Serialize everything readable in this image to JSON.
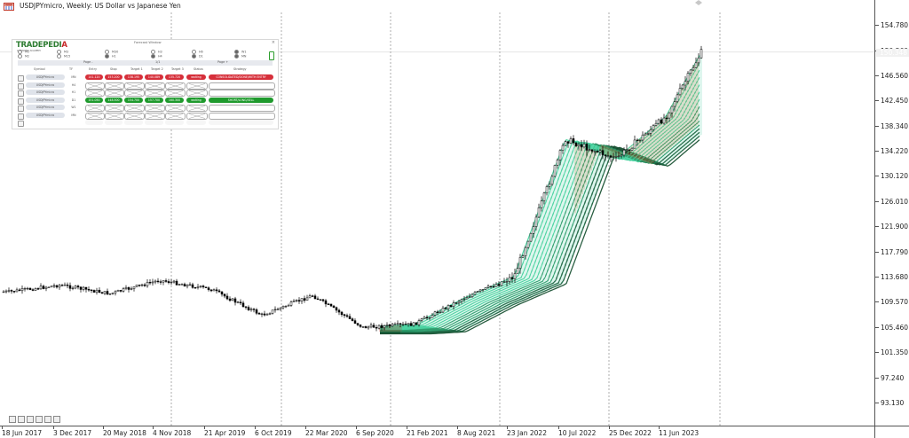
{
  "window": {
    "title": "USDJPYmicro, Weekly:  US Dollar vs Japanese Yen"
  },
  "panel": {
    "logo": "TRADEPEDIA",
    "logo_sub": "A TRADING ACADEMY",
    "title": "Forecast Window",
    "close": "×",
    "timeframes": [
      {
        "label": "M1",
        "on": false
      },
      {
        "label": "M2",
        "on": false
      },
      {
        "label": "M3",
        "on": false
      },
      {
        "label": "M15",
        "on": false
      },
      {
        "label": "M30",
        "on": false
      },
      {
        "label": "H1",
        "on": true
      },
      {
        "label": "H3",
        "on": false
      },
      {
        "label": "H4",
        "on": true
      },
      {
        "label": "H6",
        "on": false
      },
      {
        "label": "D1",
        "on": true
      },
      {
        "label": "W1",
        "on": true
      },
      {
        "label": "MN",
        "on": true
      }
    ],
    "pager": {
      "prev": "Page -",
      "num": "1/1",
      "next": "Page +"
    },
    "columns": [
      "Symbol",
      "TF",
      "Entry",
      "Stop",
      "Target 1",
      "Target 2",
      "Target 3",
      "Status",
      "Strategy"
    ],
    "rows": [
      {
        "symbol": "USDJPYmicro",
        "tf": "MN",
        "kind": "red",
        "entry": "141.120",
        "stop": "153.200",
        "t1": "138.195",
        "t2": "140.089",
        "t3": "135.720",
        "status": "waiting",
        "strategy": "CONSOLIDATED/DONE/WITH ENTRY"
      },
      {
        "symbol": "USDJPYmicro",
        "tf": "H4",
        "kind": "empty",
        "entry": "",
        "stop": "",
        "t1": "",
        "t2": "",
        "t3": "",
        "status": "",
        "strategy": ""
      },
      {
        "symbol": "USDJPYmicro",
        "tf": "H1",
        "kind": "empty",
        "entry": "",
        "stop": "",
        "t1": "",
        "t2": "",
        "t3": "",
        "status": "",
        "strategy": ""
      },
      {
        "symbol": "USDJPYmicro",
        "tf": "D1",
        "kind": "green",
        "entry": "151.050",
        "stop": "148.500",
        "t1": "154.700",
        "t2": "157.700",
        "t3": "160.300",
        "status": "waiting",
        "strategy": "SHORT/LONG/SELL"
      },
      {
        "symbol": "USDJPYmicro",
        "tf": "W1",
        "kind": "empty",
        "entry": "",
        "stop": "",
        "t1": "",
        "t2": "",
        "t3": "",
        "status": "",
        "strategy": ""
      },
      {
        "symbol": "USDJPYmicro",
        "tf": "MN",
        "kind": "empty",
        "entry": "",
        "stop": "",
        "t1": "",
        "t2": "",
        "t3": "",
        "status": "",
        "strategy": ""
      },
      {
        "symbol": "",
        "tf": "",
        "kind": "blank",
        "entry": "",
        "stop": "",
        "t1": "",
        "t2": "",
        "t3": "",
        "status": "",
        "strategy": ""
      }
    ]
  },
  "price_axis": {
    "labels": [
      "154.780",
      "150.560",
      "146.560",
      "142.450",
      "138.340",
      "134.220",
      "130.120",
      "126.010",
      "121.900",
      "117.790",
      "113.680",
      "109.570",
      "105.460",
      "101.350",
      "97.240",
      "93.130"
    ],
    "current": "150.348"
  },
  "time_axis": {
    "labels": [
      "18 Jun 2017",
      "3 Dec 2017",
      "20 May 2018",
      "4 Nov 2018",
      "21 Apr 2019",
      "6 Oct 2019",
      "22 Mar 2020",
      "6 Sep 2020",
      "21 Feb 2021",
      "8 Aug 2021",
      "23 Jan 2022",
      "10 Jul 2022",
      "25 Dec 2022",
      "11 Jun 2023"
    ]
  },
  "chart_data": {
    "type": "candlestick",
    "symbol": "USDJPYmicro",
    "timeframe": "Weekly",
    "y_range": [
      93.13,
      154.78
    ],
    "current_price": 150.348,
    "period_separators": [
      "4 Nov 2018",
      "6 Oct 2019",
      "6 Sep 2020",
      "23 Jan 2022",
      "25 Dec 2022"
    ],
    "close_path": [
      {
        "date": "18 Jun 2017",
        "close": 111.2
      },
      {
        "date": "3 Dec 2017",
        "close": 112.3
      },
      {
        "date": "20 May 2018",
        "close": 110.9
      },
      {
        "date": "4 Nov 2018",
        "close": 113.1
      },
      {
        "date": "21 Apr 2019",
        "close": 111.6
      },
      {
        "date": "6 Oct 2019",
        "close": 107.4
      },
      {
        "date": "22 Mar 2020",
        "close": 110.6
      },
      {
        "date": "6 Sep 2020",
        "close": 105.4
      },
      {
        "date": "21 Feb 2021",
        "close": 105.9
      },
      {
        "date": "8 Aug 2021",
        "close": 110.2
      },
      {
        "date": "23 Jan 2022",
        "close": 113.7
      },
      {
        "date": "10 Jul 2022",
        "close": 136.1
      },
      {
        "date": "25 Dec 2022",
        "close": 132.9
      },
      {
        "date": "11 Jun 2023",
        "close": 139.8
      },
      {
        "date": "latest",
        "close": 150.3
      }
    ],
    "ribbon_colors": {
      "bull": "#3fcf9a",
      "bear": "#e07a45",
      "bear_dark": "#c0392b",
      "dark_band": "#0f4a2a"
    }
  }
}
